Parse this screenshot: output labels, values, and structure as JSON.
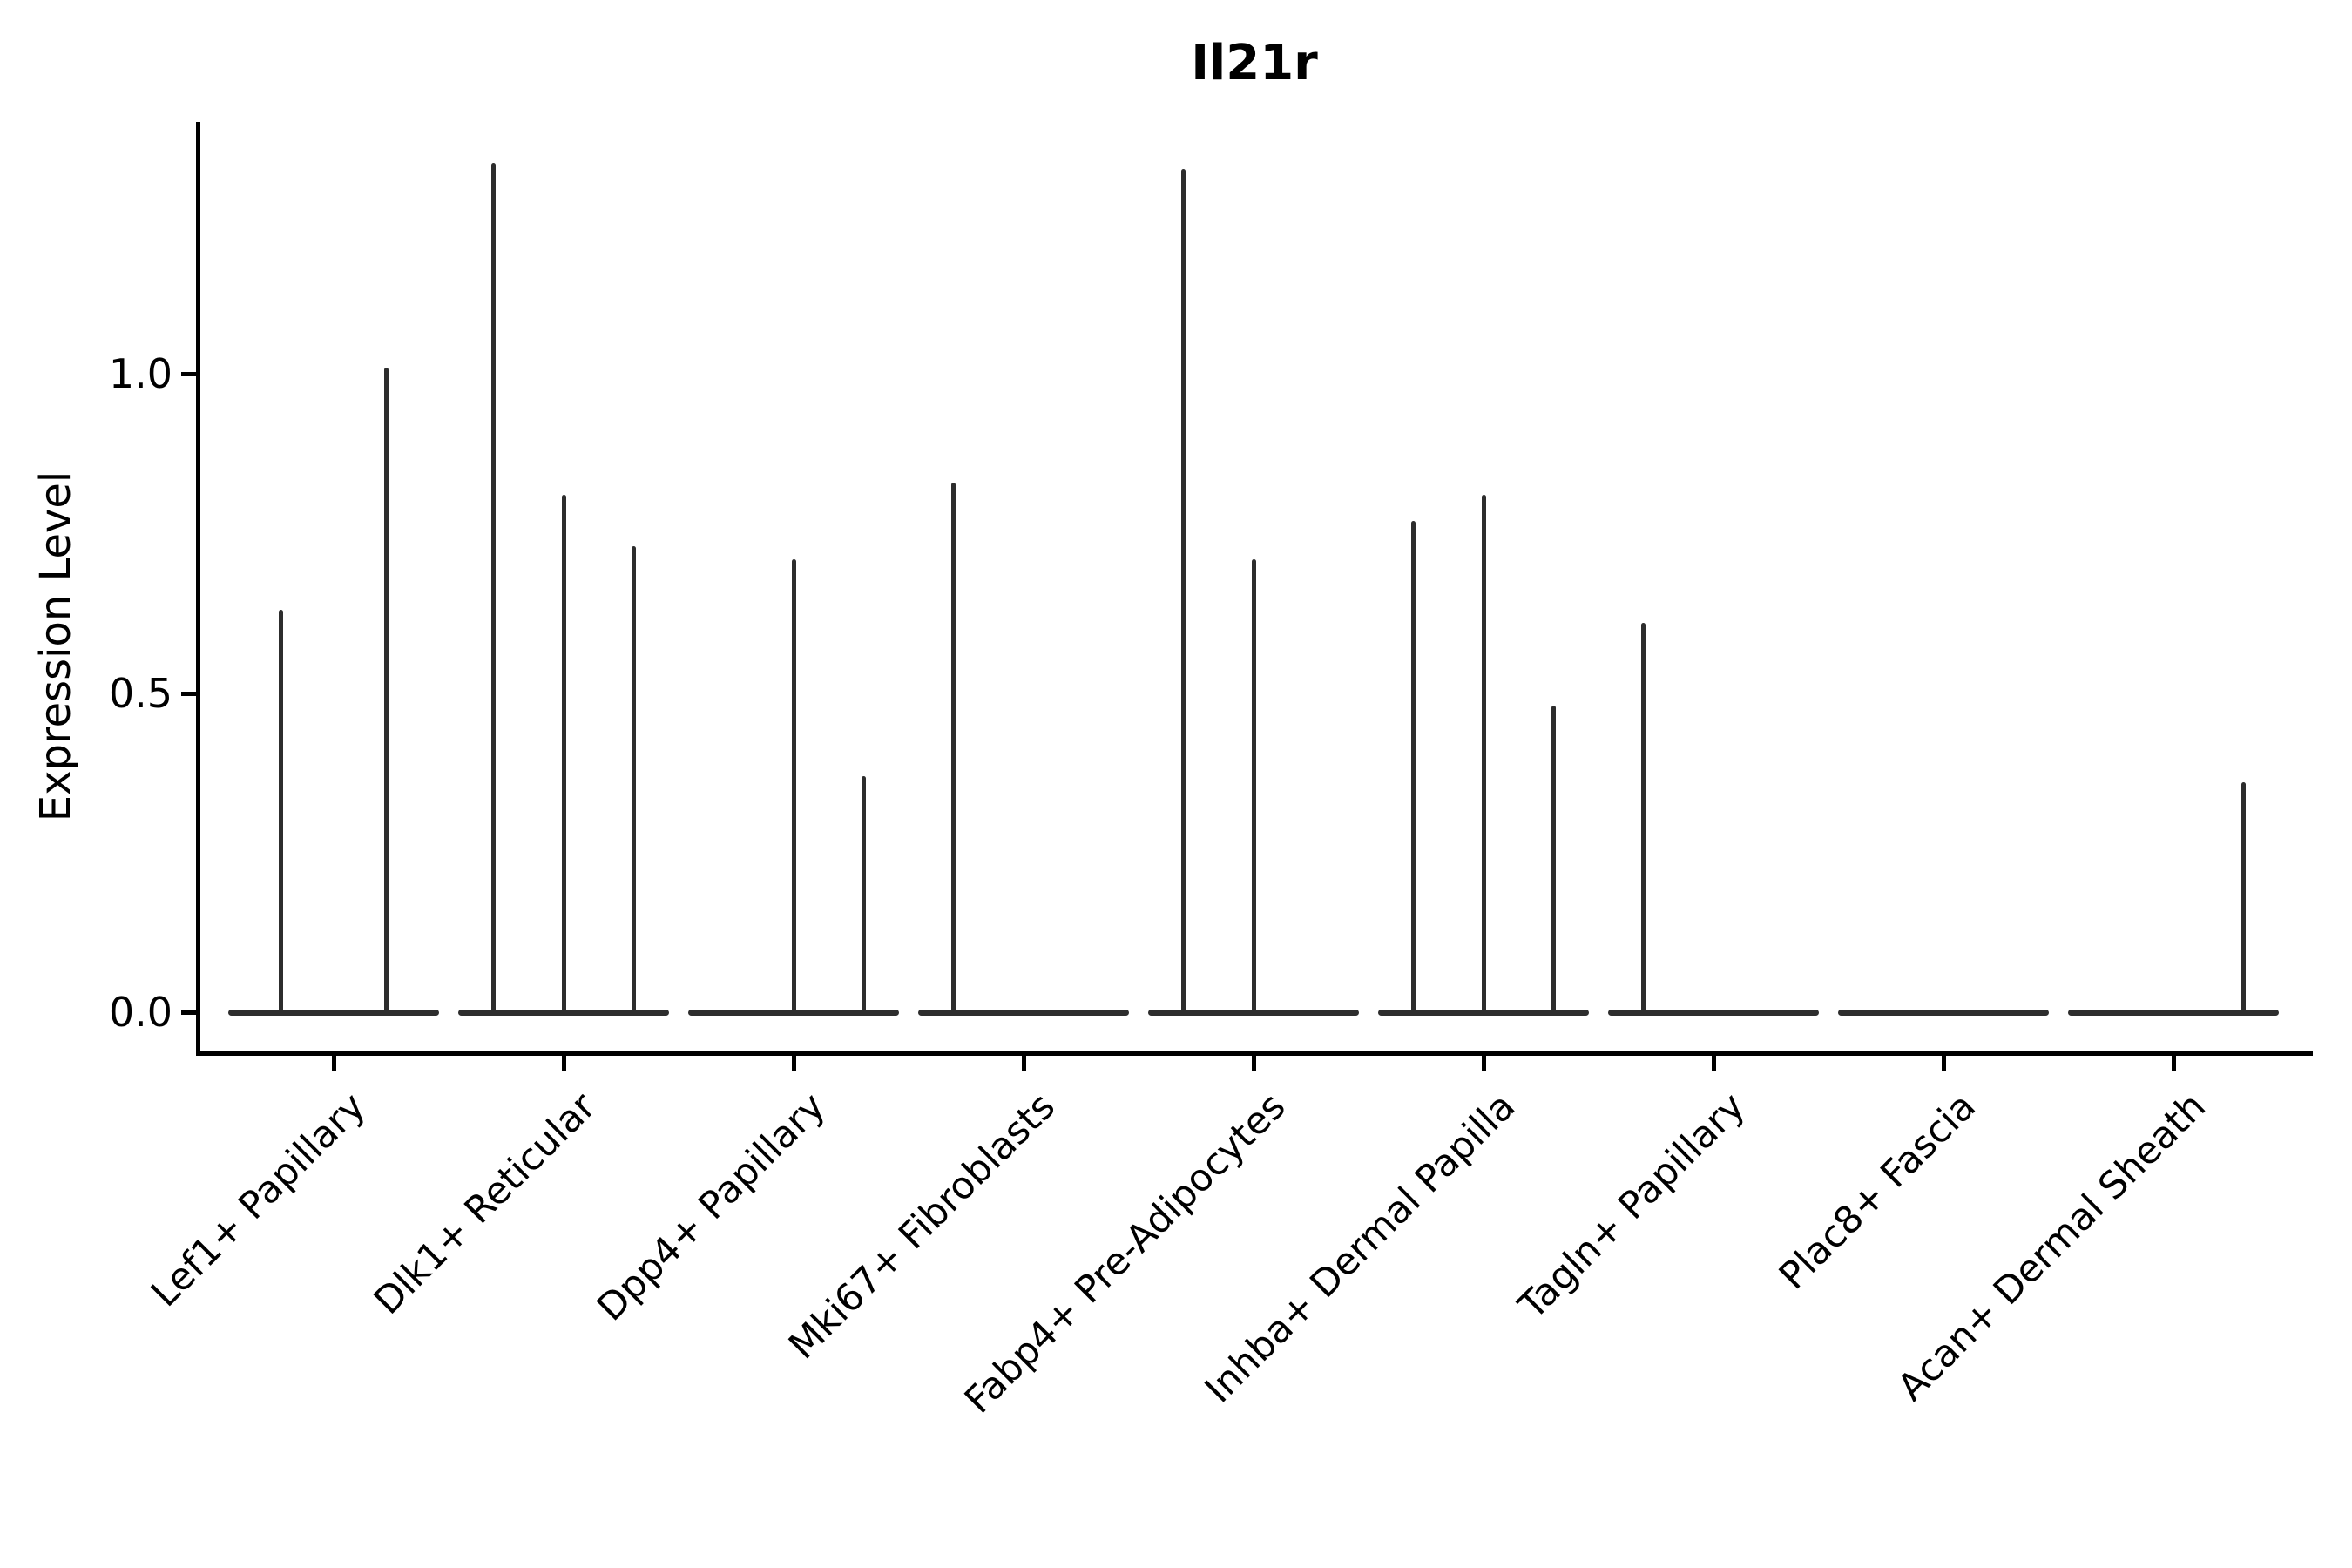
{
  "title": "Il21r",
  "axes": {
    "ylabel": "Expression Level",
    "y_tick_labels": [
      "1.0",
      "0.5",
      "0.0"
    ]
  },
  "chart_data": {
    "type": "violin",
    "title": "Il21r",
    "xlabel": "",
    "ylabel": "Expression Level",
    "y_tick_values": [
      1.0,
      0.5,
      0.0
    ],
    "ylim": [
      -0.06,
      1.39
    ],
    "grid": false,
    "legend": "none",
    "violin_color": "#2d2d2d",
    "axis_color": "#000000",
    "categories": [
      "Lef1+ Papillary",
      "Dlk1+ Reticular",
      "Dpp4+ Papillary",
      "Mki67+ Fibroblasts",
      "Fabp4+ Pre-Adipocytes",
      "Inhba+ Dermal Papilla",
      "Tagln+ Papillary",
      "Plac8+ Fascia",
      "Acan+ Dermal Sheath"
    ],
    "series": [
      {
        "category": "Lef1+ Papillary",
        "violin_max_expression": [
          0.63,
          1.01
        ]
      },
      {
        "category": "Dlk1+ Reticular",
        "violin_max_expression": [
          1.33,
          0.81,
          0.73
        ]
      },
      {
        "category": "Dpp4+ Papillary",
        "violin_max_expression": [
          0.0,
          0.71,
          0.37
        ]
      },
      {
        "category": "Mki67+ Fibroblasts",
        "violin_max_expression": [
          0.83,
          0.0,
          0.0
        ]
      },
      {
        "category": "Fabp4+ Pre-Adipocytes",
        "violin_max_expression": [
          1.32,
          0.71,
          0.0
        ]
      },
      {
        "category": "Inhba+ Dermal Papilla",
        "violin_max_expression": [
          0.77,
          0.81,
          0.48
        ]
      },
      {
        "category": "Tagln+ Papillary",
        "violin_max_expression": [
          0.61,
          0.0,
          0.0
        ]
      },
      {
        "category": "Plac8+ Fascia",
        "violin_max_expression": [
          0.0,
          0.0,
          0.0
        ]
      },
      {
        "category": "Acan+ Dermal Sheath",
        "violin_max_expression": [
          0.0,
          0.0,
          0.36
        ]
      }
    ]
  }
}
